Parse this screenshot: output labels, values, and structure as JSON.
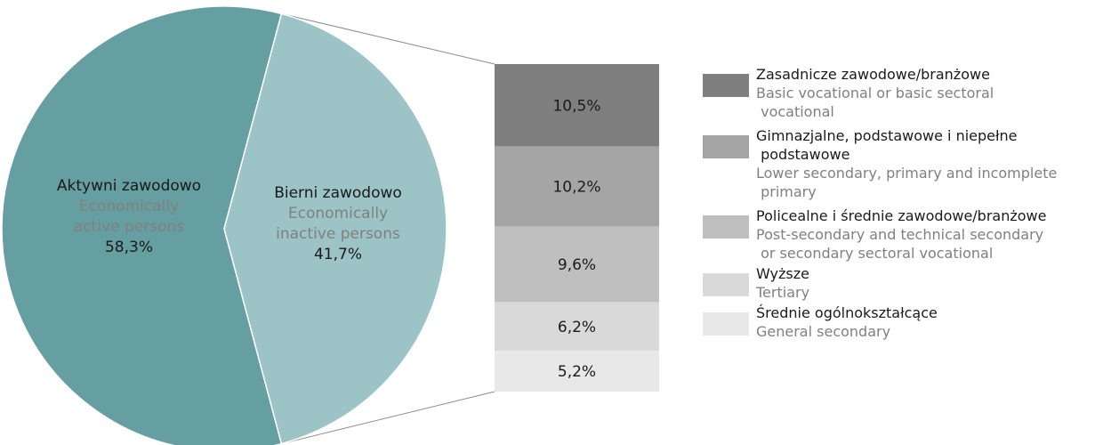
{
  "chart_data": {
    "type": "pie",
    "pie": {
      "slices": [
        {
          "label_pl": "Aktywni zawodowo",
          "label_en_lines": [
            "Economically",
            "active persons"
          ],
          "value": 58.3,
          "value_label": "58,3%",
          "color": "#659fa1"
        },
        {
          "label_pl": "Bierni zawodowo",
          "label_en_lines": [
            "Economically",
            "inactive persons"
          ],
          "value": 41.7,
          "value_label": "41,7%",
          "color": "#9cc3c5"
        }
      ]
    },
    "breakdown": {
      "type": "stacked-bar",
      "of_slice": "Bierni zawodowo",
      "segments": [
        {
          "value": 10.5,
          "value_label": "10,5%",
          "color": "#7f7f7f"
        },
        {
          "value": 10.2,
          "value_label": "10,2%",
          "color": "#a5a5a5"
        },
        {
          "value": 9.6,
          "value_label": "9,6%",
          "color": "#bfbfbf"
        },
        {
          "value": 6.2,
          "value_label": "6,2%",
          "color": "#d9d9d9"
        },
        {
          "value": 5.2,
          "value_label": "5,2%",
          "color": "#e8e8e8"
        }
      ]
    },
    "legend": {
      "position": "right",
      "items": [
        {
          "pl": "Zasadnicze zawodowe/branżowe",
          "en": "Basic vocational or basic sectoral\n vocational",
          "color": "#7f7f7f"
        },
        {
          "pl": "Gimnazjalne, podstawowe i niepełne\n podstawowe",
          "en": "Lower secondary, primary and incomplete\n primary",
          "color": "#a5a5a5"
        },
        {
          "pl": "Policealne i średnie zawodowe/branżowe",
          "en": "Post-secondary and technical secondary\n or secondary sectoral vocational",
          "color": "#bfbfbf"
        },
        {
          "pl": "Wyższe",
          "en": "Tertiary",
          "color": "#d9d9d9"
        },
        {
          "pl": "Średnie ogólnokształcące",
          "en": "General secondary",
          "color": "#e8e8e8"
        }
      ]
    }
  }
}
